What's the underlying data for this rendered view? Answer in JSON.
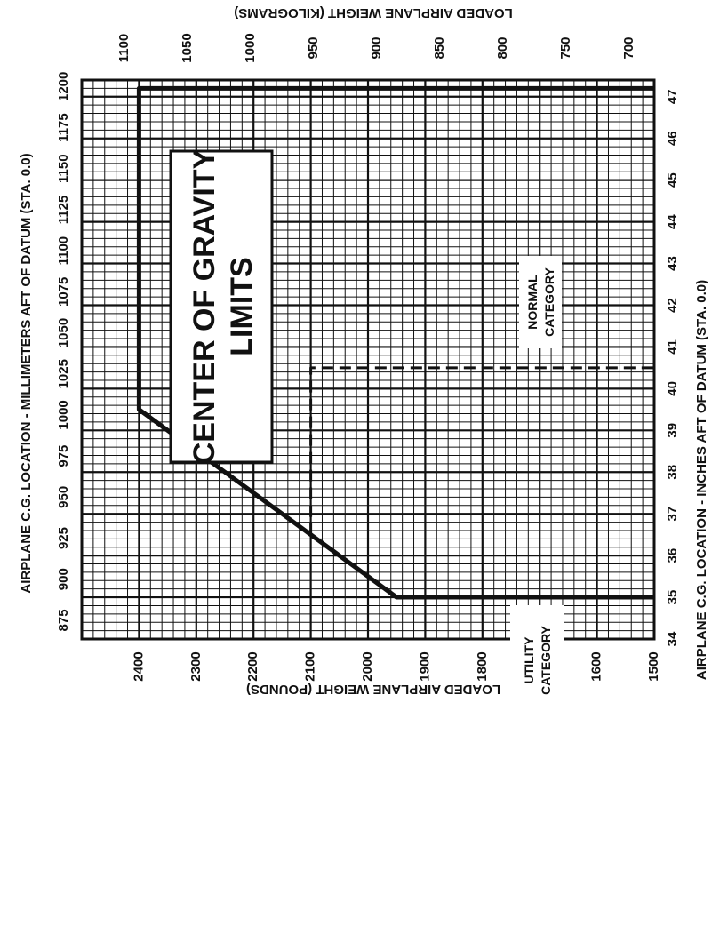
{
  "chart_data": {
    "type": "line",
    "title": "CENTER OF GRAVITY LIMITS",
    "x_axis_bottom": {
      "label": "AIRPLANE C.G. LOCATION - INCHES AFT OF DATUM (STA. 0.0)",
      "min": 34,
      "max": 47.4,
      "ticks": [
        34,
        35,
        36,
        37,
        38,
        39,
        40,
        41,
        42,
        43,
        44,
        45,
        46,
        47
      ]
    },
    "x_axis_top": {
      "label": "AIRPLANE C.G. LOCATION - MILLIMETERS AFT OF DATUM (STA. 0.0)",
      "ticks": [
        875,
        900,
        925,
        950,
        975,
        1000,
        1025,
        1050,
        1075,
        1100,
        1125,
        1150,
        1175,
        1200
      ]
    },
    "y_axis_left": {
      "label": "LOADED AIRPLANE WEIGHT (POUNDS)",
      "min": 1500,
      "max": 2500,
      "ticks": [
        1500,
        1600,
        1700,
        1800,
        1900,
        2000,
        2100,
        2200,
        2300,
        2400
      ]
    },
    "y_axis_right": {
      "label": "LOADED AIRPLANE WEIGHT (KILOGRAMS)",
      "ticks": [
        700,
        750,
        800,
        850,
        900,
        950,
        1000,
        1050,
        1100
      ]
    },
    "series": [
      {
        "name": "NORMAL CATEGORY",
        "style": "solid",
        "x": [
          35.0,
          35.0,
          39.5,
          47.2,
          47.2
        ],
        "y": [
          1500,
          1950,
          2400,
          2400,
          1500
        ]
      },
      {
        "name": "UTILITY CATEGORY",
        "style": "dashed",
        "x": [
          36.5,
          40.5,
          40.5
        ],
        "y": [
          2100,
          2100,
          1500
        ]
      }
    ],
    "annotations": [
      "NORMAL CATEGORY",
      "UTILITY CATEGORY"
    ],
    "grid": true,
    "orientation": "rotated-90-clockwise"
  },
  "labels": {
    "normal_line1": "NORMAL",
    "normal_line2": "CATEGORY",
    "utility_line1": "UTILITY",
    "utility_line2": "CATEGORY",
    "title_line1": "CENTER OF GRAVITY",
    "title_line2": "LIMITS"
  },
  "colors": {
    "ink": "#111111",
    "paper": "#ffffff"
  }
}
